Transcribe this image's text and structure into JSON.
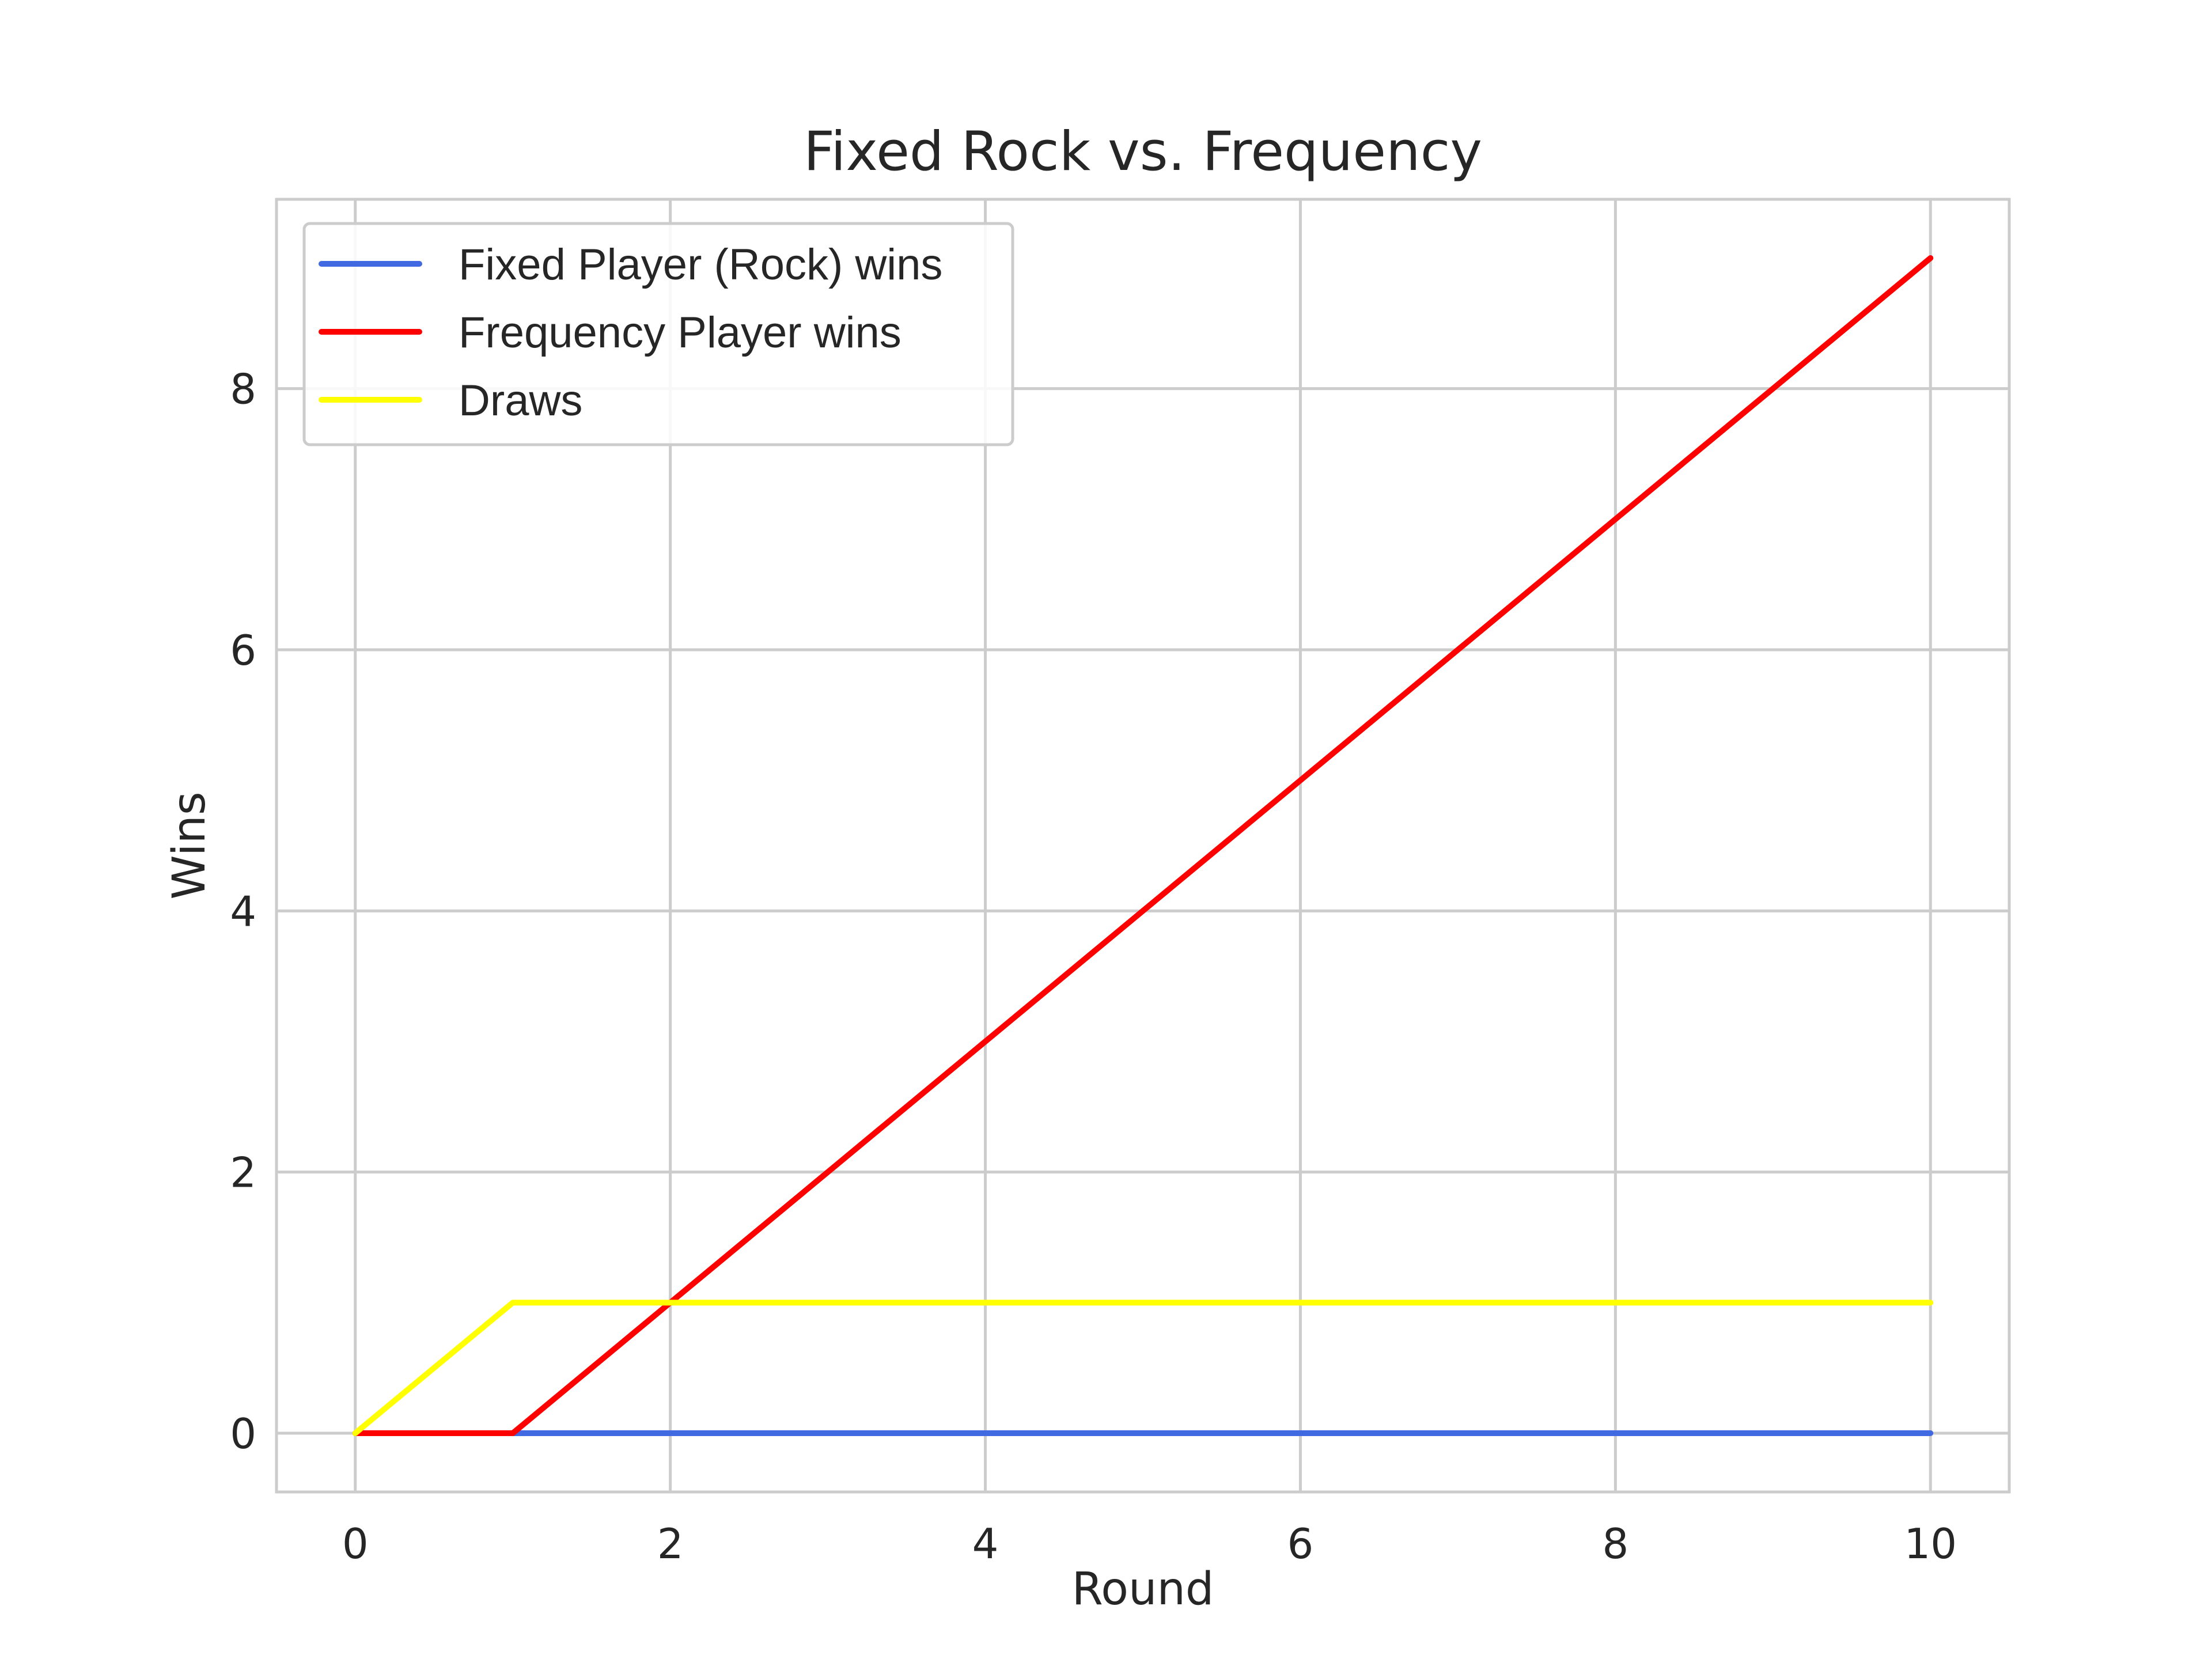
{
  "chart_data": {
    "type": "line",
    "title": "Fixed Rock vs. Frequency",
    "xlabel": "Round",
    "ylabel": "Wins",
    "x": [
      0,
      1,
      2,
      3,
      4,
      5,
      6,
      7,
      8,
      9,
      10
    ],
    "xlim": [
      -0.5,
      10.5
    ],
    "ylim": [
      -0.45,
      9.45
    ],
    "xticks": [
      0,
      2,
      4,
      6,
      8,
      10
    ],
    "yticks": [
      0,
      2,
      4,
      6,
      8
    ],
    "grid": true,
    "legend_position": "top-left",
    "series": [
      {
        "name": "Fixed Player (Rock) wins",
        "color": "#4169e1",
        "values": [
          0,
          0,
          0,
          0,
          0,
          0,
          0,
          0,
          0,
          0,
          0
        ]
      },
      {
        "name": "Frequency Player wins",
        "color": "#ff0000",
        "values": [
          0,
          0,
          1,
          2,
          3,
          4,
          5,
          6,
          7,
          8,
          9
        ]
      },
      {
        "name": "Draws",
        "color": "#ffff00",
        "values": [
          0,
          1,
          1,
          1,
          1,
          1,
          1,
          1,
          1,
          1,
          1
        ]
      }
    ]
  }
}
